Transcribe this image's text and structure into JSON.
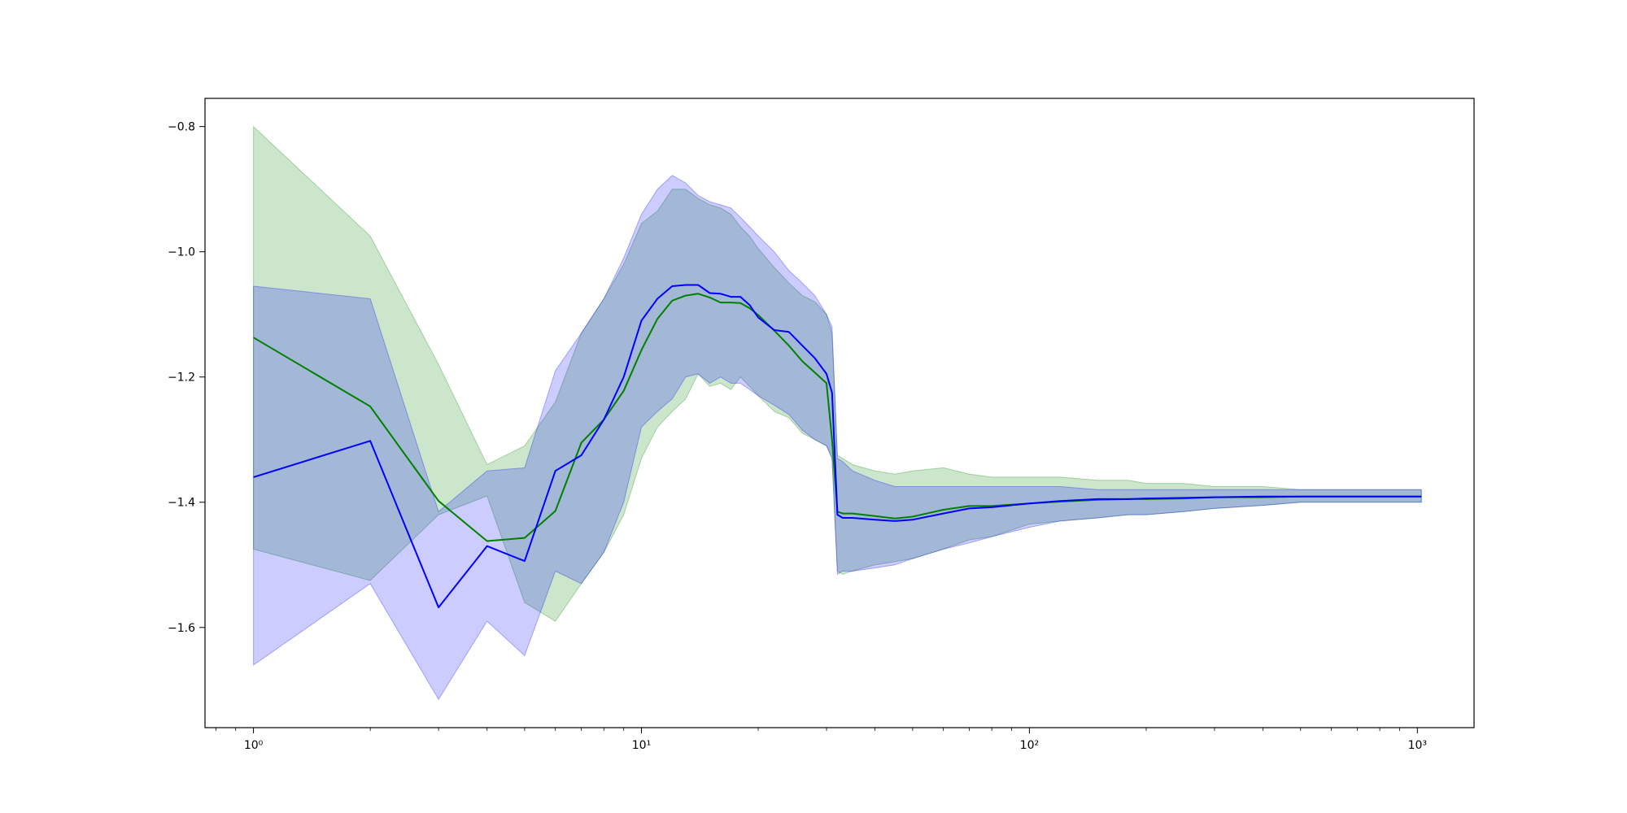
{
  "chart_data": {
    "type": "line",
    "title": "",
    "xlabel": "",
    "ylabel": "",
    "xscale": "log",
    "xlim": [
      0.75,
      1400
    ],
    "ylim": [
      -1.76,
      -0.755
    ],
    "grid": false,
    "x_ticks": [
      {
        "value": 1,
        "label": "10⁰"
      },
      {
        "value": 10,
        "label": "10¹"
      },
      {
        "value": 100,
        "label": "10²"
      },
      {
        "value": 1000,
        "label": "10³"
      }
    ],
    "y_ticks": [
      {
        "value": -0.8,
        "label": "−0.8"
      },
      {
        "value": -1.0,
        "label": "−1.0"
      },
      {
        "value": -1.2,
        "label": "−1.2"
      },
      {
        "value": -1.4,
        "label": "−1.4"
      },
      {
        "value": -1.6,
        "label": "−1.6"
      }
    ],
    "series": [
      {
        "color": "#008000",
        "band_color": "#008000",
        "band_opacity": 0.2,
        "x": [
          1,
          2,
          3,
          4,
          5,
          6,
          7,
          8,
          9,
          10,
          11,
          12,
          13,
          14,
          15,
          16,
          17,
          18,
          19,
          20,
          22,
          24,
          26,
          28,
          30,
          31,
          32,
          33,
          35,
          40,
          45,
          50,
          60,
          70,
          80,
          100,
          120,
          150,
          180,
          200,
          250,
          300,
          400,
          500,
          700,
          1000,
          1024
        ],
        "y": [
          -1.137,
          -1.247,
          -1.398,
          -1.462,
          -1.457,
          -1.414,
          -1.305,
          -1.268,
          -1.222,
          -1.157,
          -1.107,
          -1.078,
          -1.07,
          -1.067,
          -1.073,
          -1.081,
          -1.081,
          -1.082,
          -1.09,
          -1.101,
          -1.126,
          -1.15,
          -1.175,
          -1.193,
          -1.21,
          -1.3,
          -1.415,
          -1.418,
          -1.418,
          -1.422,
          -1.426,
          -1.423,
          -1.412,
          -1.406,
          -1.406,
          -1.402,
          -1.399,
          -1.396,
          -1.395,
          -1.395,
          -1.394,
          -1.392,
          -1.392,
          -1.391,
          -1.391,
          -1.391,
          -1.391
        ],
        "lower": [
          -1.475,
          -1.525,
          -1.42,
          -1.39,
          -1.56,
          -1.59,
          -1.53,
          -1.48,
          -1.42,
          -1.33,
          -1.28,
          -1.255,
          -1.235,
          -1.195,
          -1.215,
          -1.21,
          -1.22,
          -1.2,
          -1.215,
          -1.23,
          -1.255,
          -1.265,
          -1.29,
          -1.3,
          -1.31,
          -1.33,
          -1.51,
          -1.515,
          -1.51,
          -1.5,
          -1.495,
          -1.49,
          -1.475,
          -1.46,
          -1.455,
          -1.435,
          -1.43,
          -1.425,
          -1.42,
          -1.42,
          -1.415,
          -1.41,
          -1.405,
          -1.4,
          -1.4,
          -1.4,
          -1.4
        ],
        "upper": [
          -0.8,
          -0.975,
          -1.18,
          -1.34,
          -1.31,
          -1.24,
          -1.13,
          -1.075,
          -1.02,
          -0.955,
          -0.935,
          -0.9,
          -0.9,
          -0.915,
          -0.925,
          -0.93,
          -0.94,
          -0.96,
          -0.975,
          -0.995,
          -1.025,
          -1.05,
          -1.07,
          -1.08,
          -1.1,
          -1.13,
          -1.325,
          -1.33,
          -1.34,
          -1.35,
          -1.355,
          -1.35,
          -1.345,
          -1.355,
          -1.36,
          -1.36,
          -1.36,
          -1.365,
          -1.365,
          -1.37,
          -1.37,
          -1.375,
          -1.375,
          -1.38,
          -1.38,
          -1.38,
          -1.38
        ]
      },
      {
        "color": "#0000ff",
        "band_color": "#0000ff",
        "band_opacity": 0.2,
        "x": [
          1,
          2,
          3,
          4,
          5,
          6,
          7,
          8,
          9,
          10,
          11,
          12,
          13,
          14,
          15,
          16,
          17,
          18,
          19,
          20,
          22,
          24,
          26,
          28,
          30,
          31,
          32,
          33,
          35,
          40,
          45,
          50,
          60,
          70,
          80,
          100,
          120,
          150,
          180,
          200,
          250,
          300,
          400,
          500,
          700,
          1000,
          1024
        ],
        "y": [
          -1.36,
          -1.302,
          -1.568,
          -1.47,
          -1.494,
          -1.35,
          -1.325,
          -1.268,
          -1.2,
          -1.11,
          -1.075,
          -1.055,
          -1.053,
          -1.053,
          -1.066,
          -1.067,
          -1.072,
          -1.072,
          -1.085,
          -1.105,
          -1.125,
          -1.128,
          -1.15,
          -1.17,
          -1.195,
          -1.225,
          -1.42,
          -1.425,
          -1.425,
          -1.428,
          -1.43,
          -1.428,
          -1.418,
          -1.41,
          -1.408,
          -1.402,
          -1.398,
          -1.395,
          -1.395,
          -1.394,
          -1.393,
          -1.392,
          -1.391,
          -1.391,
          -1.391,
          -1.391,
          -1.391
        ],
        "lower": [
          -1.66,
          -1.53,
          -1.715,
          -1.59,
          -1.645,
          -1.51,
          -1.53,
          -1.48,
          -1.4,
          -1.28,
          -1.255,
          -1.235,
          -1.2,
          -1.195,
          -1.21,
          -1.2,
          -1.21,
          -1.21,
          -1.22,
          -1.23,
          -1.245,
          -1.26,
          -1.285,
          -1.3,
          -1.31,
          -1.33,
          -1.515,
          -1.51,
          -1.51,
          -1.505,
          -1.5,
          -1.49,
          -1.475,
          -1.465,
          -1.455,
          -1.44,
          -1.43,
          -1.425,
          -1.42,
          -1.42,
          -1.415,
          -1.41,
          -1.405,
          -1.4,
          -1.4,
          -1.4,
          -1.4
        ],
        "upper": [
          -1.055,
          -1.075,
          -1.415,
          -1.35,
          -1.345,
          -1.19,
          -1.13,
          -1.075,
          -1.01,
          -0.94,
          -0.9,
          -0.878,
          -0.89,
          -0.91,
          -0.92,
          -0.925,
          -0.93,
          -0.945,
          -0.96,
          -0.975,
          -1.0,
          -1.03,
          -1.05,
          -1.07,
          -1.1,
          -1.12,
          -1.33,
          -1.335,
          -1.35,
          -1.365,
          -1.375,
          -1.375,
          -1.375,
          -1.375,
          -1.375,
          -1.375,
          -1.375,
          -1.38,
          -1.38,
          -1.38,
          -1.38,
          -1.38,
          -1.38,
          -1.38,
          -1.38,
          -1.38,
          -1.38
        ]
      }
    ]
  }
}
